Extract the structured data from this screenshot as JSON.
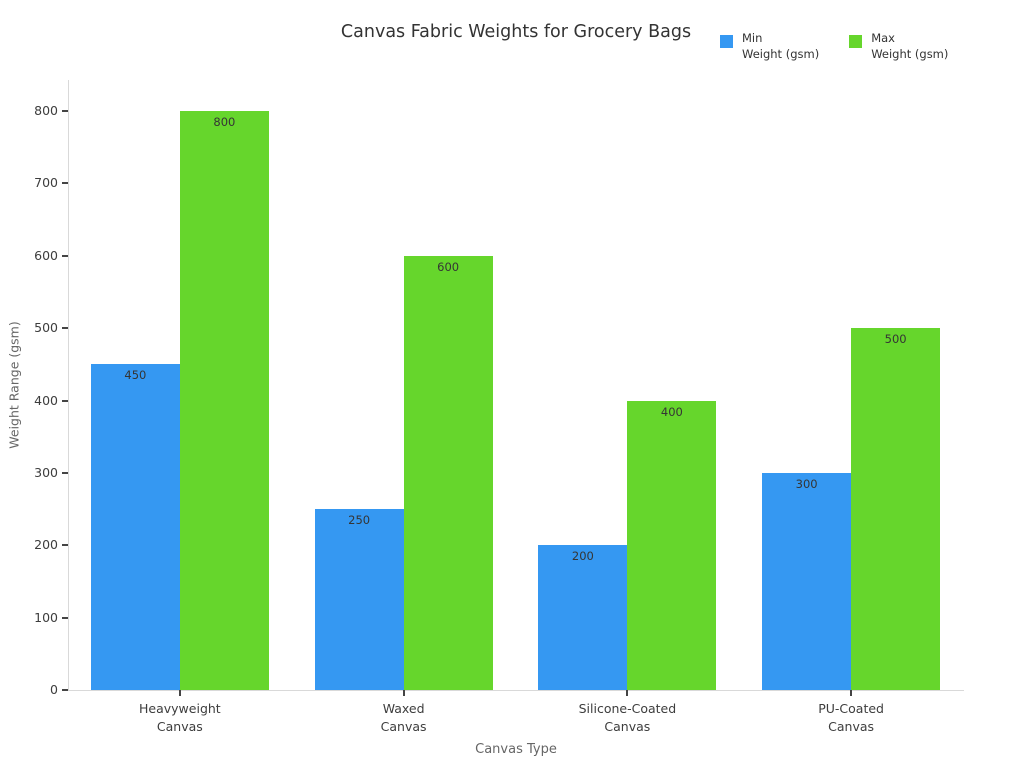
{
  "title": "Canvas Fabric Weights for Grocery Bags",
  "chart_data": {
    "type": "bar",
    "title": "Canvas Fabric Weights for Grocery Bags",
    "xlabel": "Canvas Type",
    "ylabel": "Weight Range (gsm)",
    "categories": [
      "Heavyweight\nCanvas",
      "Waxed\nCanvas",
      "Silicone-Coated\nCanvas",
      "PU-Coated\nCanvas"
    ],
    "series": [
      {
        "name": "Min Weight (gsm)",
        "legend_label": "Min\nWeight (gsm)",
        "color": "#3598f2",
        "values": [
          450,
          250,
          200,
          300
        ]
      },
      {
        "name": "Max Weight (gsm)",
        "legend_label": "Max\nWeight (gsm)",
        "color": "#66d62c",
        "values": [
          800,
          600,
          400,
          500
        ]
      }
    ],
    "ylim": [
      0,
      800
    ],
    "yticks": [
      0,
      100,
      200,
      300,
      400,
      500,
      600,
      700,
      800
    ],
    "grid": false,
    "bar_labels": true,
    "legend_position": "top-right",
    "colors": {
      "axis_line": "#d9d9d9",
      "tick_mark": "#444444",
      "tick_text": "#3d3d3d",
      "axis_title_text": "#666666",
      "title_text": "#333333",
      "bar_label_text": "#353535",
      "background": "#ffffff"
    }
  }
}
